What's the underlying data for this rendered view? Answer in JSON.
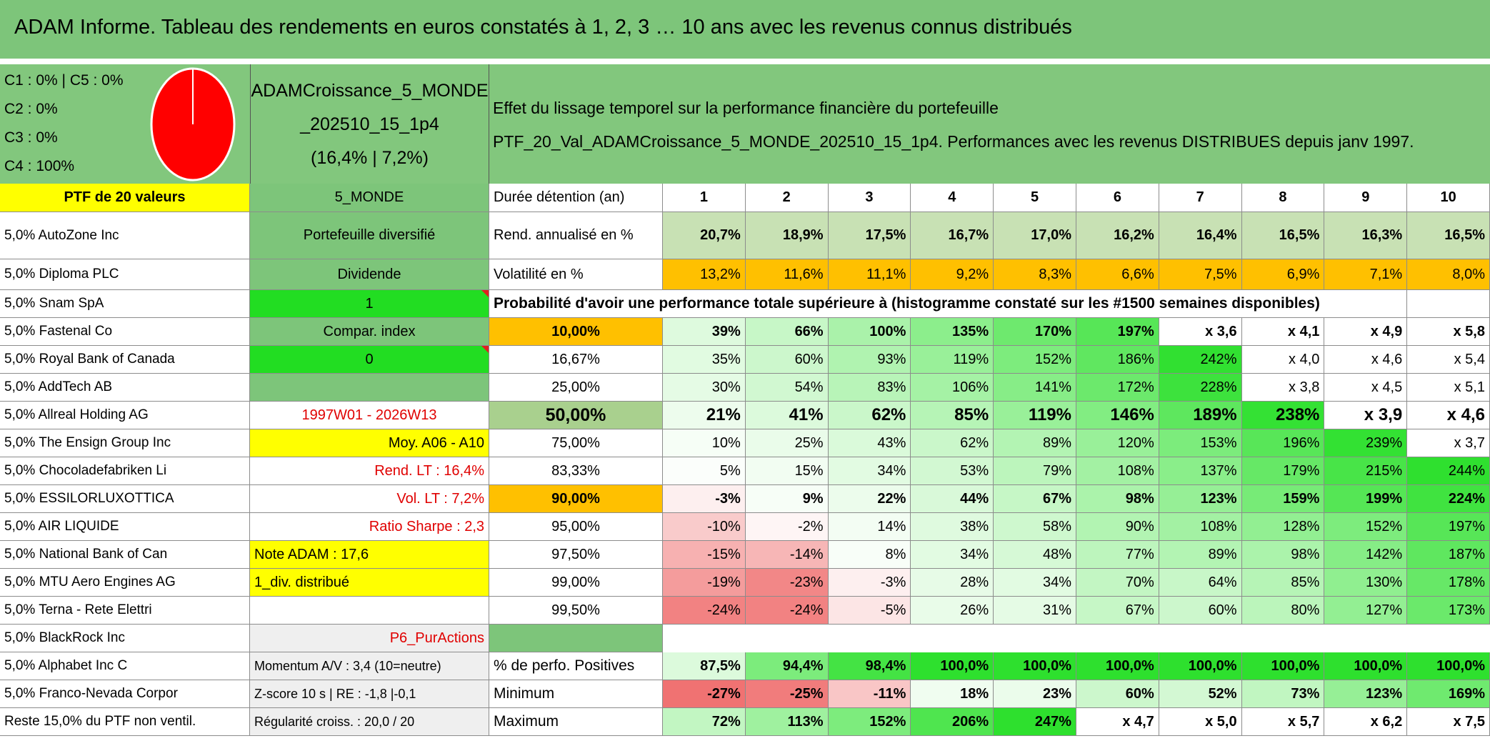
{
  "header": {
    "title": "ADAM Informe. Tableau des rendements en euros constatés à 1, 2, 3 … 10 ans avec les revenus connus distribués"
  },
  "summary": {
    "class_weights": [
      "C1 : 0% | C5 : 0%",
      "C2 : 0%",
      "C3 : 0%",
      "C4 : 100%"
    ],
    "portfolio": [
      "ADAMCroissance_5_MONDE",
      "_202510_15_1p4",
      "(16,4% | 7,2%)"
    ],
    "description": [
      "Effet du lissage temporel sur la performance financière du portefeuille",
      "PTF_20_Val_ADAMCroissance_5_MONDE_202510_15_1p4. Performances avec les revenus DISTRIBUES depuis janv 1997."
    ]
  },
  "portfolio_column": [
    "PTF de 20 valeurs",
    "5,0% AutoZone Inc",
    "5,0% Diploma PLC",
    "5,0% Snam SpA",
    "5,0% Fastenal Co",
    "5,0% Royal Bank of Canada",
    "5,0% AddTech AB",
    "5,0% Allreal Holding AG",
    "5,0% The Ensign Group Inc",
    "5,0% Chocoladefabriken Li",
    "5,0% ESSILORLUXOTTICA",
    "5,0% AIR LIQUIDE",
    "5,0% National Bank of Can",
    "5,0% MTU Aero Engines AG",
    "5,0% Terna - Rete Elettri",
    "5,0% BlackRock Inc",
    "5,0% Alphabet Inc C",
    "5,0% Franco-Nevada Corpor",
    "Reste 15,0% du PTF non ventil."
  ],
  "info_column": [
    "5_MONDE",
    "Portefeuille diversifié",
    "Dividende",
    "1",
    "Compar. index",
    "0",
    null,
    "1997W01 - 2026W13",
    "Moy. A06 - A10",
    "Rend. LT : 16,4%",
    "Vol. LT : 7,2%",
    "Ratio Sharpe : 2,3",
    "Note ADAM : 17,6",
    "1_div. distribué",
    null,
    "P6_PurActions",
    "Momentum A/V : 3,4 (10=neutre)",
    "Z-score 10 s | RE : -1,8 |-0,1",
    "Régularité croiss. : 20,0 / 20"
  ],
  "metrics": {
    "label": "Durée détention (an)",
    "years": [
      1,
      2,
      3,
      4,
      5,
      6,
      7,
      8,
      9,
      10
    ],
    "annual_return": {
      "label": "Rend. annualisé en %",
      "values": [
        "20,7%",
        "18,9%",
        "17,5%",
        "16,7%",
        "17,0%",
        "16,2%",
        "16,4%",
        "16,5%",
        "16,3%",
        "16,5%"
      ]
    },
    "volatility": {
      "label": "Volatilité en %",
      "values": [
        "13,2%",
        "11,6%",
        "11,1%",
        "9,2%",
        "8,3%",
        "6,6%",
        "7,5%",
        "6,9%",
        "7,1%",
        "8,0%"
      ]
    },
    "probability_note": "Probabilité d'avoir une performance totale supérieure à (histogramme constaté sur les #1500 semaines disponibles)",
    "probability_rows": [
      {
        "threshold": "10,00%",
        "values": [
          "39%",
          "66%",
          "100%",
          "135%",
          "170%",
          "197%",
          "x 3,6",
          "x 4,1",
          "x 4,9",
          "x 5,8"
        ]
      },
      {
        "threshold": "16,67%",
        "values": [
          "35%",
          "60%",
          "93%",
          "119%",
          "152%",
          "186%",
          "242%",
          "x 4,0",
          "x 4,6",
          "x 5,4"
        ]
      },
      {
        "threshold": "25,00%",
        "values": [
          "30%",
          "54%",
          "83%",
          "106%",
          "141%",
          "172%",
          "228%",
          "x 3,8",
          "x 4,5",
          "x 5,1"
        ]
      },
      {
        "threshold": "50,00%",
        "values": [
          "21%",
          "41%",
          "62%",
          "85%",
          "119%",
          "146%",
          "189%",
          "238%",
          "x 3,9",
          "x 4,6"
        ]
      },
      {
        "threshold": "75,00%",
        "values": [
          "10%",
          "25%",
          "43%",
          "62%",
          "89%",
          "120%",
          "153%",
          "196%",
          "239%",
          "x 3,7"
        ]
      },
      {
        "threshold": "83,33%",
        "values": [
          "5%",
          "15%",
          "34%",
          "53%",
          "79%",
          "108%",
          "137%",
          "179%",
          "215%",
          "244%"
        ]
      },
      {
        "threshold": "90,00%",
        "values": [
          "-3%",
          "9%",
          "22%",
          "44%",
          "67%",
          "98%",
          "123%",
          "159%",
          "199%",
          "224%"
        ]
      },
      {
        "threshold": "95,00%",
        "values": [
          "-10%",
          "-2%",
          "14%",
          "38%",
          "58%",
          "90%",
          "108%",
          "128%",
          "152%",
          "197%"
        ]
      },
      {
        "threshold": "97,50%",
        "values": [
          "-15%",
          "-14%",
          "8%",
          "34%",
          "48%",
          "77%",
          "89%",
          "98%",
          "142%",
          "187%"
        ]
      },
      {
        "threshold": "99,00%",
        "values": [
          "-19%",
          "-23%",
          "-3%",
          "28%",
          "34%",
          "70%",
          "64%",
          "85%",
          "130%",
          "178%"
        ]
      },
      {
        "threshold": "99,50%",
        "values": [
          "-24%",
          "-24%",
          "-5%",
          "26%",
          "31%",
          "67%",
          "60%",
          "80%",
          "127%",
          "173%"
        ]
      }
    ],
    "positive_share": {
      "label": "% de perfo. Positives",
      "values": [
        "87,5%",
        "94,4%",
        "98,4%",
        "100,0%",
        "100,0%",
        "100,0%",
        "100,0%",
        "100,0%",
        "100,0%",
        "100,0%"
      ]
    },
    "minimum": {
      "label": "Minimum",
      "values": [
        "-27%",
        "-25%",
        "-11%",
        "18%",
        "23%",
        "60%",
        "52%",
        "73%",
        "123%",
        "169%"
      ]
    },
    "maximum": {
      "label": "Maximum",
      "values": [
        "72%",
        "113%",
        "152%",
        "206%",
        "247%",
        "x 4,7",
        "x 5,0",
        "x 5,7",
        "x 6,2",
        "x 7,5"
      ]
    }
  }
}
